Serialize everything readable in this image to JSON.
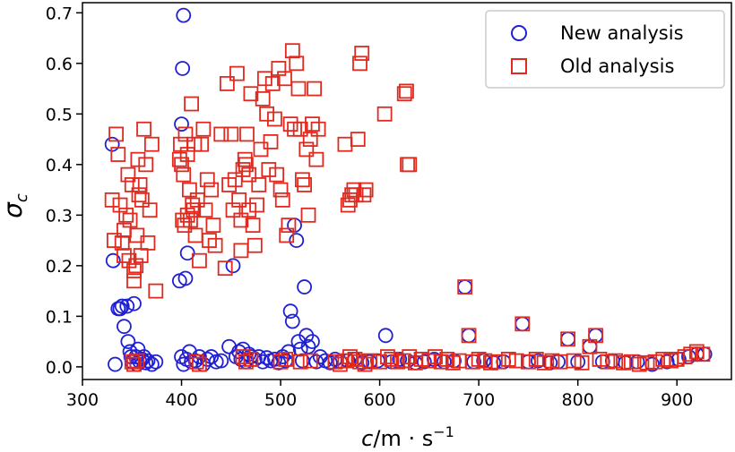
{
  "chart_data": {
    "type": "scatter",
    "title": "",
    "xlabel": "c/m · s⁻¹",
    "ylabel": "σc",
    "xlim": [
      300,
      955
    ],
    "ylim": [
      -0.025,
      0.72
    ],
    "x_ticks": [
      "300",
      "400",
      "500",
      "600",
      "700",
      "800",
      "900"
    ],
    "x_tick_values": [
      300,
      400,
      500,
      600,
      700,
      800,
      900
    ],
    "y_ticks": [
      "0.0",
      "0.1",
      "0.2",
      "0.3",
      "0.4",
      "0.5",
      "0.6",
      "0.7"
    ],
    "y_tick_values": [
      0.0,
      0.1,
      0.2,
      0.3,
      0.4,
      0.5,
      0.6,
      0.7
    ],
    "grid": false,
    "legend_position": "top-right",
    "series": [
      {
        "name": "New analysis",
        "marker": "circle",
        "color": "#1f1fd6",
        "points": [
          [
            330,
            0.44
          ],
          [
            331,
            0.21
          ],
          [
            333,
            0.005
          ],
          [
            336,
            0.115
          ],
          [
            338,
            0.115
          ],
          [
            340,
            0.12
          ],
          [
            342,
            0.08
          ],
          [
            345,
            0.12
          ],
          [
            346,
            0.05
          ],
          [
            348,
            0.03
          ],
          [
            349,
            0.02
          ],
          [
            350,
            0.01
          ],
          [
            352,
            0.125
          ],
          [
            354,
            0.02
          ],
          [
            355,
            0.005
          ],
          [
            356,
            0.035
          ],
          [
            358,
            0.01
          ],
          [
            360,
            0.015
          ],
          [
            362,
            0.02
          ],
          [
            364,
            0.008
          ],
          [
            366,
            0.012
          ],
          [
            370,
            0.005
          ],
          [
            374,
            0.01
          ],
          [
            400,
            0.48
          ],
          [
            401,
            0.59
          ],
          [
            402,
            0.695
          ],
          [
            398,
            0.17
          ],
          [
            404,
            0.175
          ],
          [
            406,
            0.225
          ],
          [
            400,
            0.02
          ],
          [
            402,
            0.005
          ],
          [
            405,
            0.015
          ],
          [
            408,
            0.03
          ],
          [
            410,
            0.01
          ],
          [
            414,
            0.012
          ],
          [
            418,
            0.02
          ],
          [
            422,
            0.005
          ],
          [
            426,
            0.015
          ],
          [
            430,
            0.02
          ],
          [
            435,
            0.01
          ],
          [
            440,
            0.012
          ],
          [
            448,
            0.04
          ],
          [
            452,
            0.2
          ],
          [
            455,
            0.02
          ],
          [
            458,
            0.03
          ],
          [
            460,
            0.015
          ],
          [
            462,
            0.035
          ],
          [
            465,
            0.01
          ],
          [
            468,
            0.025
          ],
          [
            470,
            0.02
          ],
          [
            474,
            0.015
          ],
          [
            478,
            0.02
          ],
          [
            482,
            0.01
          ],
          [
            486,
            0.018
          ],
          [
            490,
            0.012
          ],
          [
            494,
            0.015
          ],
          [
            498,
            0.008
          ],
          [
            502,
            0.02
          ],
          [
            505,
            0.012
          ],
          [
            508,
            0.03
          ],
          [
            510,
            0.11
          ],
          [
            512,
            0.09
          ],
          [
            514,
            0.28
          ],
          [
            516,
            0.25
          ],
          [
            518,
            0.05
          ],
          [
            520,
            0.035
          ],
          [
            522,
            0.012
          ],
          [
            524,
            0.158
          ],
          [
            526,
            0.062
          ],
          [
            528,
            0.04
          ],
          [
            532,
            0.05
          ],
          [
            536,
            0.01
          ],
          [
            540,
            0.02
          ],
          [
            545,
            0.012
          ],
          [
            550,
            0.008
          ],
          [
            555,
            0.015
          ],
          [
            560,
            0.01
          ],
          [
            568,
            0.012
          ],
          [
            575,
            0.015
          ],
          [
            582,
            0.008
          ],
          [
            590,
            0.01
          ],
          [
            598,
            0.012
          ],
          [
            606,
            0.062
          ],
          [
            612,
            0.01
          ],
          [
            620,
            0.015
          ],
          [
            628,
            0.012
          ],
          [
            636,
            0.008
          ],
          [
            645,
            0.01
          ],
          [
            655,
            0.015
          ],
          [
            665,
            0.01
          ],
          [
            675,
            0.012
          ],
          [
            686,
            0.158
          ],
          [
            690,
            0.062
          ],
          [
            695,
            0.01
          ],
          [
            705,
            0.012
          ],
          [
            715,
            0.008
          ],
          [
            725,
            0.01
          ],
          [
            744,
            0.085
          ],
          [
            750,
            0.01
          ],
          [
            760,
            0.012
          ],
          [
            772,
            0.008
          ],
          [
            780,
            0.01
          ],
          [
            790,
            0.055
          ],
          [
            800,
            0.01
          ],
          [
            812,
            0.04
          ],
          [
            818,
            0.062
          ],
          [
            825,
            0.01
          ],
          [
            835,
            0.012
          ],
          [
            848,
            0.008
          ],
          [
            860,
            0.01
          ],
          [
            875,
            0.005
          ],
          [
            890,
            0.01
          ],
          [
            902,
            0.015
          ],
          [
            912,
            0.02
          ],
          [
            920,
            0.025
          ],
          [
            928,
            0.025
          ]
        ]
      },
      {
        "name": "Old analysis",
        "marker": "square",
        "color": "#e02a1f",
        "points": [
          [
            330,
            0.33
          ],
          [
            332,
            0.25
          ],
          [
            334,
            0.46
          ],
          [
            336,
            0.42
          ],
          [
            338,
            0.32
          ],
          [
            340,
            0.245
          ],
          [
            342,
            0.22
          ],
          [
            344,
            0.3
          ],
          [
            346,
            0.38
          ],
          [
            348,
            0.29
          ],
          [
            350,
            0.36
          ],
          [
            352,
            0.19
          ],
          [
            354,
            0.2
          ],
          [
            356,
            0.41
          ],
          [
            358,
            0.36
          ],
          [
            360,
            0.33
          ],
          [
            362,
            0.47
          ],
          [
            364,
            0.4
          ],
          [
            366,
            0.245
          ],
          [
            368,
            0.31
          ],
          [
            370,
            0.44
          ],
          [
            374,
            0.15
          ],
          [
            352,
            0.17
          ],
          [
            355,
            0.26
          ],
          [
            357,
            0.34
          ],
          [
            359,
            0.22
          ],
          [
            347,
            0.21
          ],
          [
            342,
            0.27
          ],
          [
            350,
            0.01
          ],
          [
            352,
            0.005
          ],
          [
            355,
            0.012
          ],
          [
            398,
            0.41
          ],
          [
            399,
            0.44
          ],
          [
            400,
            0.4
          ],
          [
            401,
            0.29
          ],
          [
            402,
            0.38
          ],
          [
            403,
            0.28
          ],
          [
            404,
            0.46
          ],
          [
            406,
            0.42
          ],
          [
            408,
            0.35
          ],
          [
            409,
            0.29
          ],
          [
            410,
            0.52
          ],
          [
            412,
            0.31
          ],
          [
            414,
            0.26
          ],
          [
            416,
            0.33
          ],
          [
            418,
            0.21
          ],
          [
            420,
            0.44
          ],
          [
            422,
            0.47
          ],
          [
            424,
            0.31
          ],
          [
            426,
            0.37
          ],
          [
            428,
            0.25
          ],
          [
            430,
            0.35
          ],
          [
            432,
            0.28
          ],
          [
            434,
            0.24
          ],
          [
            406,
            0.3
          ],
          [
            411,
            0.32
          ],
          [
            413,
            0.44
          ],
          [
            415,
            0.01
          ],
          [
            418,
            0.005
          ],
          [
            440,
            0.46
          ],
          [
            444,
            0.195
          ],
          [
            446,
            0.56
          ],
          [
            448,
            0.36
          ],
          [
            450,
            0.46
          ],
          [
            452,
            0.31
          ],
          [
            454,
            0.37
          ],
          [
            456,
            0.58
          ],
          [
            458,
            0.33
          ],
          [
            460,
            0.29
          ],
          [
            462,
            0.39
          ],
          [
            464,
            0.41
          ],
          [
            466,
            0.46
          ],
          [
            468,
            0.31
          ],
          [
            470,
            0.54
          ],
          [
            472,
            0.28
          ],
          [
            474,
            0.24
          ],
          [
            476,
            0.32
          ],
          [
            478,
            0.36
          ],
          [
            480,
            0.43
          ],
          [
            482,
            0.53
          ],
          [
            484,
            0.57
          ],
          [
            486,
            0.5
          ],
          [
            488,
            0.39
          ],
          [
            490,
            0.445
          ],
          [
            492,
            0.56
          ],
          [
            494,
            0.49
          ],
          [
            496,
            0.38
          ],
          [
            498,
            0.59
          ],
          [
            500,
            0.35
          ],
          [
            502,
            0.33
          ],
          [
            504,
            0.57
          ],
          [
            506,
            0.26
          ],
          [
            508,
            0.28
          ],
          [
            510,
            0.48
          ],
          [
            512,
            0.625
          ],
          [
            514,
            0.47
          ],
          [
            516,
            0.6
          ],
          [
            518,
            0.55
          ],
          [
            520,
            0.47
          ],
          [
            522,
            0.37
          ],
          [
            524,
            0.36
          ],
          [
            526,
            0.43
          ],
          [
            528,
            0.3
          ],
          [
            530,
            0.45
          ],
          [
            532,
            0.48
          ],
          [
            534,
            0.55
          ],
          [
            536,
            0.41
          ],
          [
            538,
            0.47
          ],
          [
            460,
            0.23
          ],
          [
            465,
            0.4
          ],
          [
            468,
            0.38
          ],
          [
            462,
            0.02
          ],
          [
            465,
            0.01
          ],
          [
            470,
            0.015
          ],
          [
            500,
            0.01
          ],
          [
            505,
            0.015
          ],
          [
            520,
            0.01
          ],
          [
            530,
            0.012
          ],
          [
            565,
            0.44
          ],
          [
            568,
            0.32
          ],
          [
            570,
            0.33
          ],
          [
            572,
            0.34
          ],
          [
            574,
            0.35
          ],
          [
            576,
            0.34
          ],
          [
            578,
            0.45
          ],
          [
            580,
            0.6
          ],
          [
            582,
            0.62
          ],
          [
            584,
            0.34
          ],
          [
            586,
            0.35
          ],
          [
            605,
            0.5
          ],
          [
            625,
            0.54
          ],
          [
            627,
            0.545
          ],
          [
            628,
            0.4
          ],
          [
            630,
            0.4
          ],
          [
            555,
            0.01
          ],
          [
            560,
            0.005
          ],
          [
            565,
            0.012
          ],
          [
            570,
            0.02
          ],
          [
            575,
            0.015
          ],
          [
            580,
            0.01
          ],
          [
            585,
            0.005
          ],
          [
            590,
            0.012
          ],
          [
            600,
            0.01
          ],
          [
            608,
            0.02
          ],
          [
            612,
            0.015
          ],
          [
            618,
            0.01
          ],
          [
            624,
            0.012
          ],
          [
            630,
            0.02
          ],
          [
            636,
            0.008
          ],
          [
            642,
            0.015
          ],
          [
            650,
            0.012
          ],
          [
            656,
            0.02
          ],
          [
            662,
            0.01
          ],
          [
            668,
            0.015
          ],
          [
            674,
            0.008
          ],
          [
            680,
            0.012
          ],
          [
            686,
            0.158
          ],
          [
            690,
            0.062
          ],
          [
            694,
            0.01
          ],
          [
            700,
            0.015
          ],
          [
            706,
            0.012
          ],
          [
            712,
            0.008
          ],
          [
            720,
            0.01
          ],
          [
            730,
            0.015
          ],
          [
            738,
            0.012
          ],
          [
            744,
            0.085
          ],
          [
            750,
            0.01
          ],
          [
            758,
            0.015
          ],
          [
            766,
            0.008
          ],
          [
            774,
            0.012
          ],
          [
            782,
            0.01
          ],
          [
            790,
            0.055
          ],
          [
            796,
            0.012
          ],
          [
            804,
            0.008
          ],
          [
            812,
            0.04
          ],
          [
            818,
            0.062
          ],
          [
            822,
            0.015
          ],
          [
            830,
            0.01
          ],
          [
            838,
            0.012
          ],
          [
            846,
            0.008
          ],
          [
            854,
            0.01
          ],
          [
            862,
            0.005
          ],
          [
            870,
            0.008
          ],
          [
            878,
            0.01
          ],
          [
            886,
            0.015
          ],
          [
            894,
            0.012
          ],
          [
            900,
            0.015
          ],
          [
            908,
            0.02
          ],
          [
            914,
            0.025
          ],
          [
            920,
            0.03
          ],
          [
            926,
            0.025
          ]
        ]
      }
    ]
  }
}
